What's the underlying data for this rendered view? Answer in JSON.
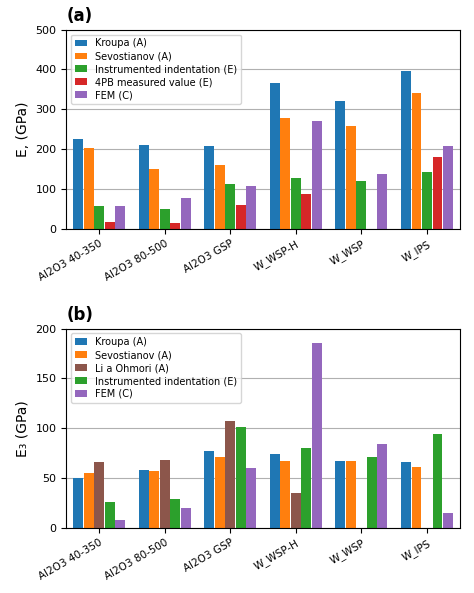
{
  "chart_data": [
    {
      "type": "bar",
      "title": "(a)",
      "ylabel": "E, (GPa)",
      "categories": [
        "Al2O3 40-350",
        "Al2O3 80-500",
        "Al2O3 GSP",
        "W_WSP-H",
        "W_WSP",
        "W_IPS"
      ],
      "series": [
        {
          "name": "Kroupa (A)",
          "values": [
            225,
            210,
            207,
            365,
            320,
            397
          ]
        },
        {
          "name": "Sevostianov (A)",
          "values": [
            202,
            150,
            160,
            278,
            258,
            342
          ]
        },
        {
          "name": "Instrumented indentation (E)",
          "values": [
            57,
            50,
            112,
            128,
            120,
            143
          ]
        },
        {
          "name": "4PB measured value (E)",
          "values": [
            18,
            15,
            60,
            88,
            0,
            180
          ]
        },
        {
          "name": "FEM (C)",
          "values": [
            58,
            78,
            107,
            270,
            138,
            207
          ]
        }
      ],
      "ylim": [
        0,
        500
      ],
      "yticks": [
        0,
        100,
        200,
        300,
        400,
        500
      ],
      "grid": "y",
      "legend": "upper left"
    },
    {
      "type": "bar",
      "title": "(b)",
      "ylabel": "E₃ (GPa)",
      "categories": [
        "Al2O3 40-350",
        "Al2O3 80-500",
        "Al2O3 GSP",
        "W_WSP-H",
        "W_WSP",
        "W_IPS"
      ],
      "series": [
        {
          "name": "Kroupa (A)",
          "values": [
            50,
            58,
            77,
            74,
            67,
            66
          ]
        },
        {
          "name": "Sevostianov (A)",
          "values": [
            55,
            57,
            71,
            67,
            67,
            61
          ]
        },
        {
          "name": "Li a Ohmori (A)",
          "values": [
            66,
            68,
            107,
            35,
            0,
            0
          ]
        },
        {
          "name": "Instrumented indentation (E)",
          "values": [
            26,
            29,
            101,
            80,
            71,
            94
          ]
        },
        {
          "name": "FEM (C)",
          "values": [
            8,
            20,
            60,
            185,
            84,
            15
          ]
        }
      ],
      "ylim": [
        0,
        200
      ],
      "yticks": [
        0,
        50,
        100,
        150,
        200
      ],
      "grid": "y",
      "legend": "upper left"
    }
  ]
}
